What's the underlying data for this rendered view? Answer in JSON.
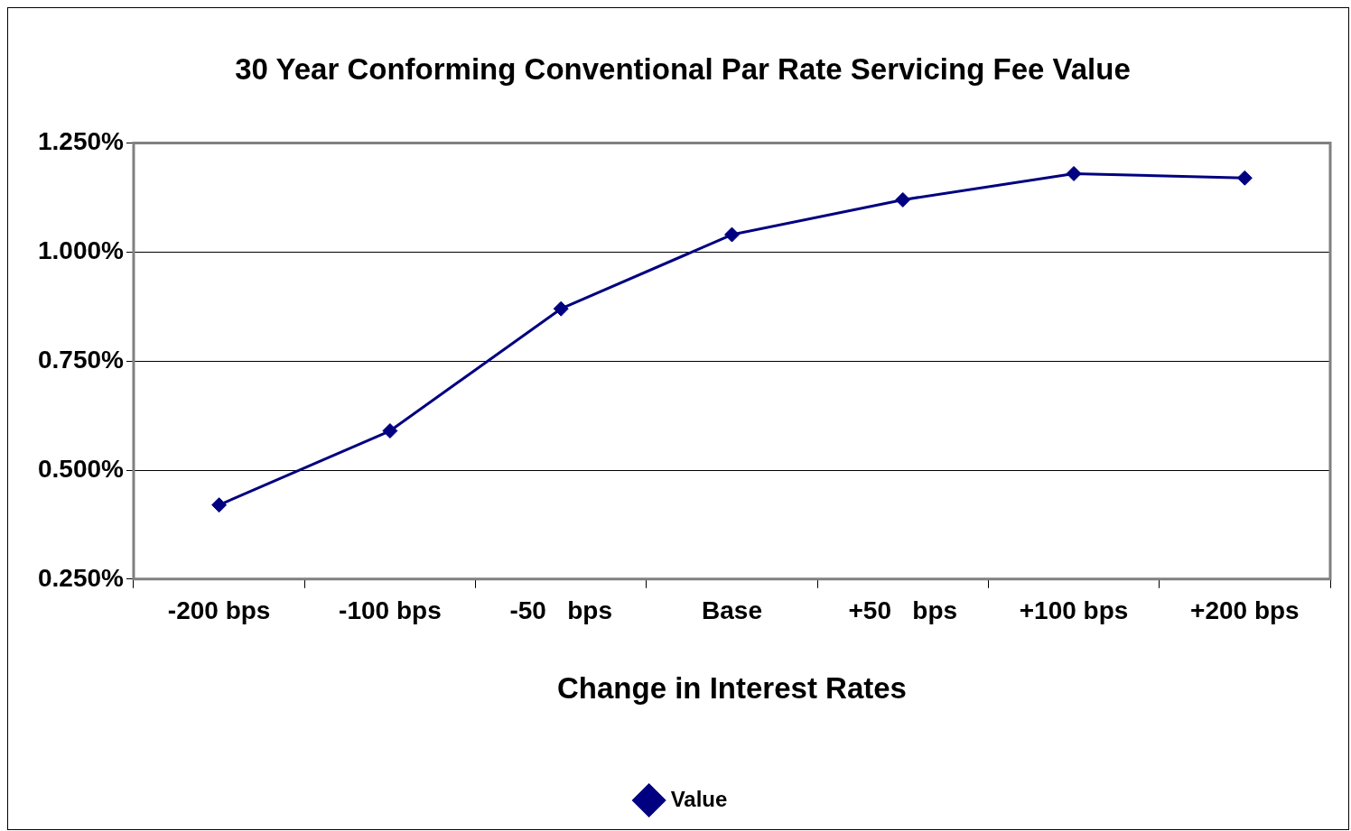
{
  "chart_data": {
    "type": "line",
    "title": "30 Year Conforming Conventional Par Rate Servicing Fee Value",
    "xlabel": "Change in Interest Rates",
    "categories": [
      "-200 bps",
      "-100 bps",
      "-50   bps",
      "Base",
      "+50   bps",
      "+100 bps",
      "+200 bps"
    ],
    "series": [
      {
        "name": "Value",
        "color": "#000080",
        "values": [
          0.42,
          0.59,
          0.87,
          1.04,
          1.12,
          1.18,
          1.17
        ]
      }
    ],
    "ylim": [
      0.25,
      1.25
    ],
    "yticks": [
      {
        "value": 0.25,
        "label": "0.250%"
      },
      {
        "value": 0.5,
        "label": "0.500%"
      },
      {
        "value": 0.75,
        "label": "0.750%"
      },
      {
        "value": 1.0,
        "label": "1.000%"
      },
      {
        "value": 1.25,
        "label": "1.250%"
      }
    ],
    "grid": "y",
    "legend": "bottom",
    "marker": "diamond",
    "line_style": "solid"
  }
}
